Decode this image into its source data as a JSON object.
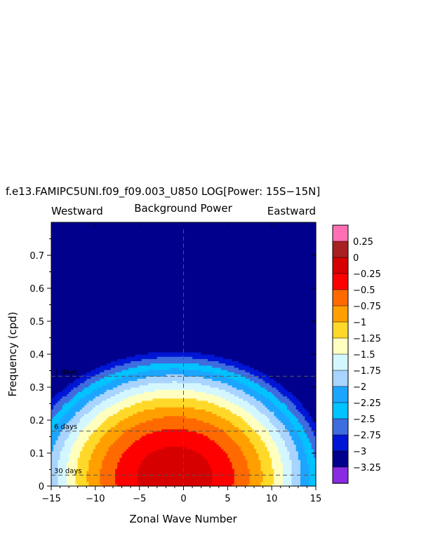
{
  "chart_data": {
    "type": "heatmap",
    "title": "f.e13.FAMIPC5UNI.f09_f09.003_U850 LOG[Power: 15S−15N]",
    "subtitle": "Background Power",
    "left_label": "Westward",
    "right_label": "Eastward",
    "xlabel": "Zonal Wave Number",
    "ylabel": "Frequency (cpd)",
    "xlim": [
      -15,
      15
    ],
    "ylim": [
      0,
      0.8
    ],
    "x_ticks": [
      -15,
      -10,
      -5,
      0,
      5,
      10,
      15
    ],
    "x_tick_labels": [
      "−15",
      "−10",
      "−5",
      "0",
      "5",
      "10",
      "15"
    ],
    "y_ticks": [
      0,
      0.1,
      0.2,
      0.3,
      0.4,
      0.5,
      0.6,
      0.7
    ],
    "y_tick_labels": [
      "0",
      "0.1",
      "0.2",
      "0.3",
      "0.4",
      "0.5",
      "0.6",
      "0.7"
    ],
    "period_lines": [
      {
        "label": "3 days",
        "frequency": 0.3333
      },
      {
        "label": "6 days",
        "frequency": 0.1667
      },
      {
        "label": "30 days",
        "frequency": 0.0333
      }
    ],
    "contour_levels": [
      -3.25,
      -3,
      -2.75,
      -2.5,
      -2.25,
      -2,
      -1.75,
      -1.5,
      -1.25,
      -1,
      -0.75,
      -0.5,
      -0.25,
      0,
      0.25
    ],
    "colorbar_labels": [
      "0.25",
      "0",
      "−0.25",
      "−0.5",
      "−0.75",
      "−1",
      "−1.25",
      "−1.5",
      "−1.75",
      "−2",
      "−2.25",
      "−2.5",
      "−2.75",
      "−3",
      "−3.25"
    ],
    "colorbar_colors": [
      "#ff6fb4",
      "#a82020",
      "#d60000",
      "#ff0000",
      "#ff6a00",
      "#ffa000",
      "#ffd92a",
      "#ffffc0",
      "#d4f7ff",
      "#a8d4ff",
      "#1ca5ff",
      "#00c3ff",
      "#3f6cde",
      "#0016d6",
      "#00008c",
      "#8a2be2"
    ],
    "model": {
      "peak_value": -0.08,
      "peak_wavenumber": -1,
      "peak_frequency": 0.03,
      "outer_value": -3.35
    }
  }
}
